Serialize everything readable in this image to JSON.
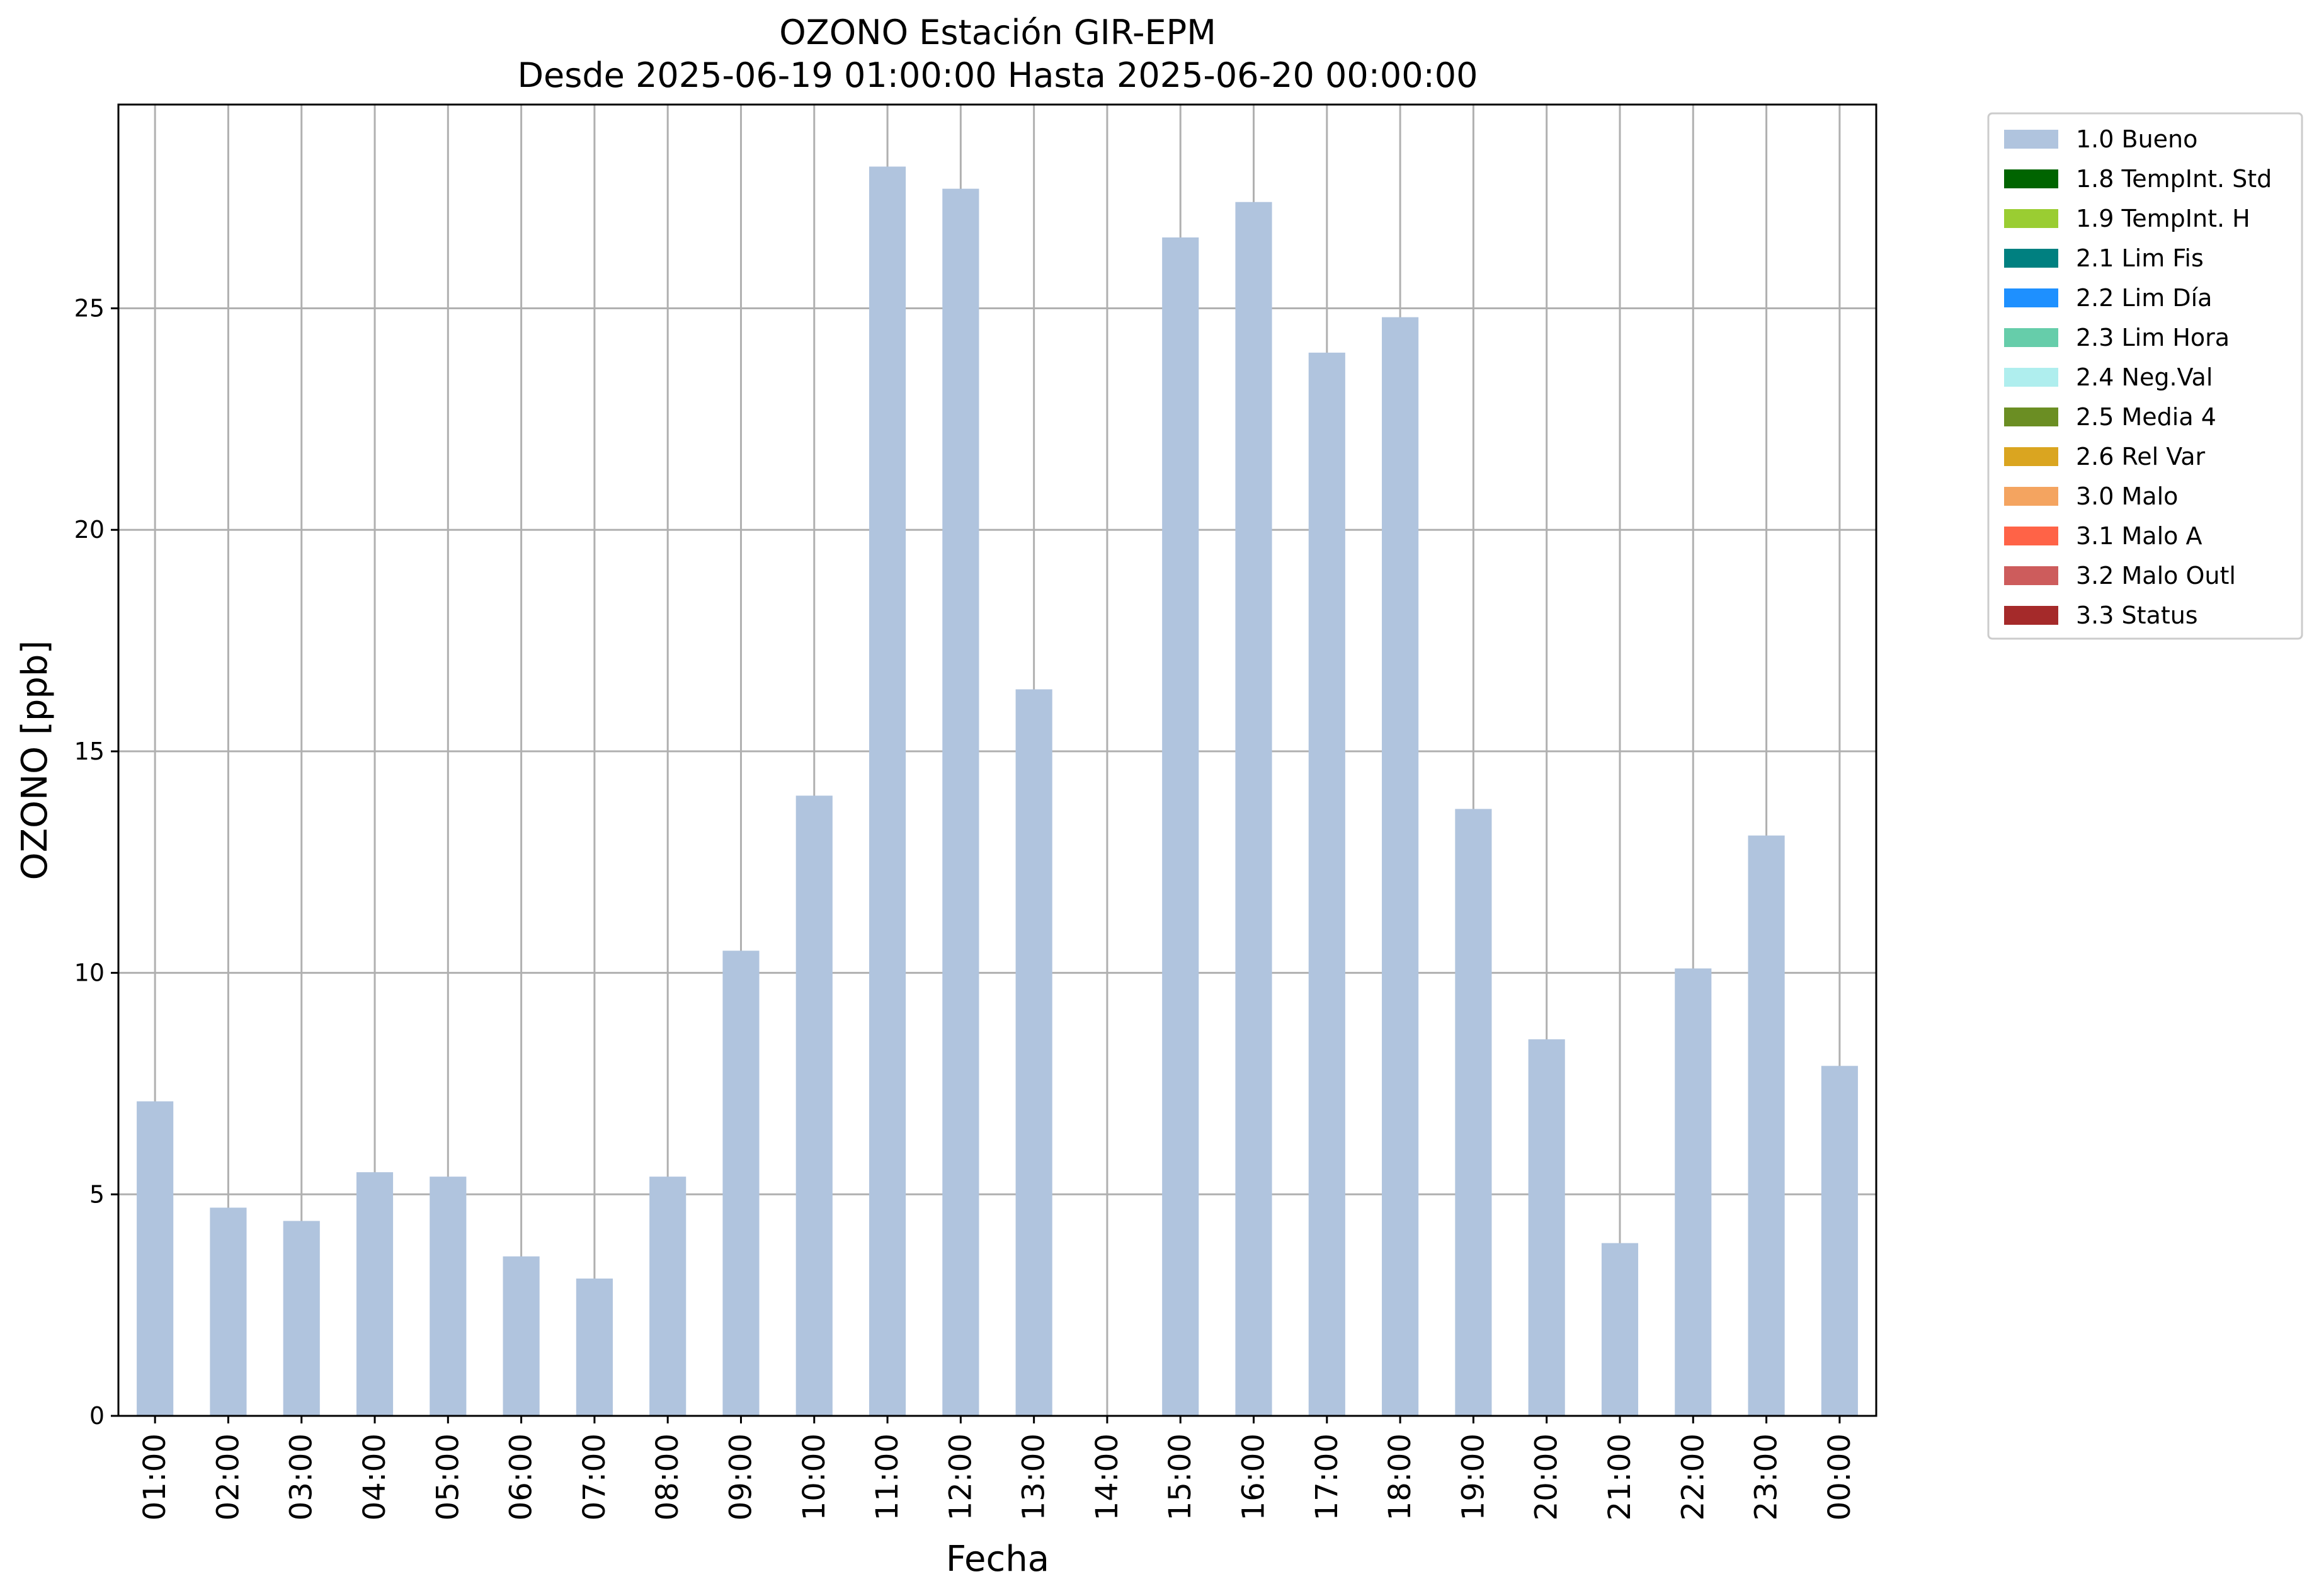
{
  "chart_data": {
    "type": "bar",
    "title": "OZONO Estación GIR-EPM",
    "subtitle": "Desde 2025-06-19 01:00:00 Hasta 2025-06-20 00:00:00",
    "xlabel": "Fecha",
    "ylabel": "OZONO [ppb]",
    "ylim": [
      0,
      29.6
    ],
    "yticks": [
      "0",
      "5",
      "10",
      "15",
      "20",
      "25"
    ],
    "grid": true,
    "legend_position": "outside-top-right",
    "categories": [
      "01:00",
      "02:00",
      "03:00",
      "04:00",
      "05:00",
      "06:00",
      "07:00",
      "08:00",
      "09:00",
      "10:00",
      "11:00",
      "12:00",
      "13:00",
      "14:00",
      "15:00",
      "16:00",
      "17:00",
      "18:00",
      "19:00",
      "20:00",
      "21:00",
      "22:00",
      "23:00",
      "00:00"
    ],
    "series": [
      {
        "name": "1.0 Bueno",
        "color": "#b0c4de",
        "values": [
          7.1,
          4.7,
          4.4,
          5.5,
          5.4,
          3.6,
          3.1,
          5.4,
          10.5,
          14.0,
          28.2,
          27.7,
          16.4,
          null,
          26.6,
          27.4,
          24.0,
          24.8,
          13.7,
          8.5,
          3.9,
          10.1,
          13.1,
          7.9
        ]
      }
    ],
    "legend": [
      {
        "label": "1.0 Bueno",
        "color": "#b0c4de"
      },
      {
        "label": "1.8 TempInt. Std",
        "color": "#006400"
      },
      {
        "label": "1.9 TempInt. H",
        "color": "#9acd32"
      },
      {
        "label": "2.1 Lim Fis",
        "color": "#008080"
      },
      {
        "label": "2.2 Lim Día",
        "color": "#1e90ff"
      },
      {
        "label": "2.3 Lim Hora",
        "color": "#66cdaa"
      },
      {
        "label": "2.4 Neg.Val",
        "color": "#afeeee"
      },
      {
        "label": "2.5 Media 4",
        "color": "#6b8e23"
      },
      {
        "label": "2.6 Rel Var",
        "color": "#daa520"
      },
      {
        "label": "3.0 Malo",
        "color": "#f4a460"
      },
      {
        "label": "3.1 Malo A",
        "color": "#ff6347"
      },
      {
        "label": "3.2 Malo Outl",
        "color": "#cd5c5c"
      },
      {
        "label": "3.3 Status",
        "color": "#a52a2a"
      }
    ]
  }
}
